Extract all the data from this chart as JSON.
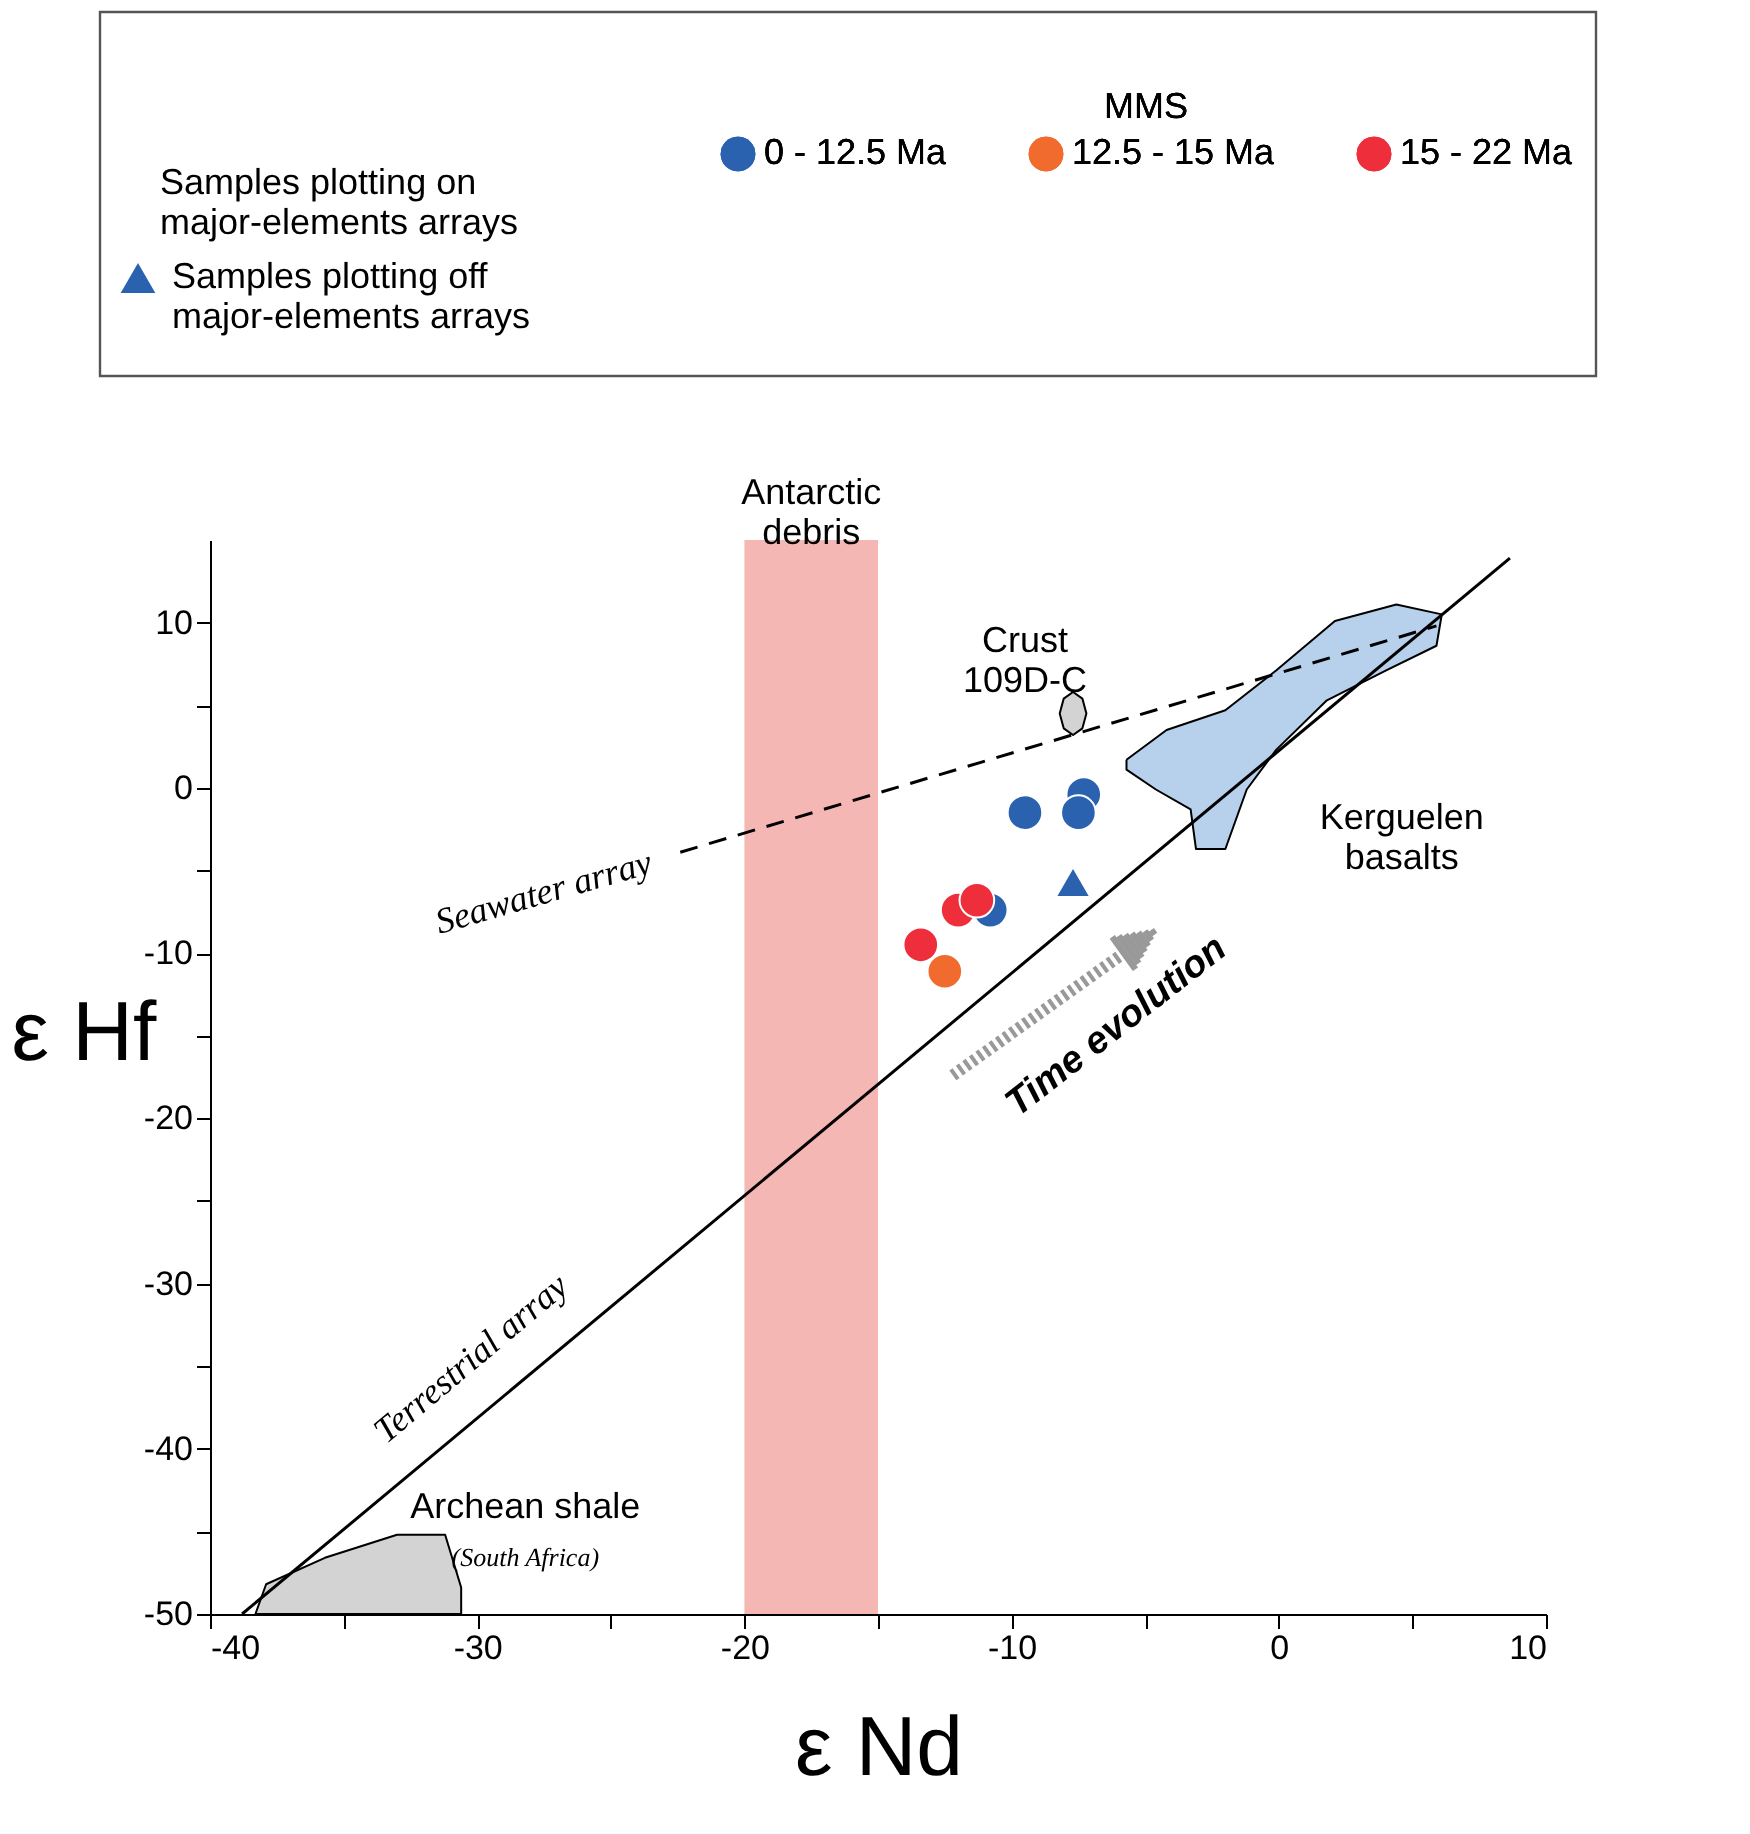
{
  "chart_data": {
    "type": "scatter",
    "xlabel": "ε Nd",
    "ylabel": "ε Hf",
    "legend_title": "MMS",
    "legend": "top",
    "grid": false,
    "xlim": [
      -40,
      10
    ],
    "xticks": [
      -40,
      {
        "value": -35,
        "label": null
      },
      -30,
      {
        "value": -25,
        "label": null
      },
      -20,
      {
        "value": -15,
        "label": null
      },
      -10,
      {
        "value": -5,
        "label": null
      },
      0,
      {
        "value": 5,
        "label": null
      },
      10
    ],
    "ylim": [
      -50,
      15
    ],
    "yticks": [
      -50,
      {
        "value": -45,
        "label": null
      },
      -40,
      {
        "value": -35,
        "label": null
      },
      -30,
      {
        "value": -25,
        "label": null
      },
      -20,
      {
        "value": -15,
        "label": null
      },
      -10,
      {
        "value": -5,
        "label": null
      },
      0,
      {
        "value": 5,
        "label": null
      },
      10
    ],
    "bands": [
      {
        "axis": "x",
        "from": -20,
        "to": -15,
        "label": "Antarctic\ndebris",
        "color": "#f5b7b3"
      }
    ],
    "series": [
      {
        "type": "area",
        "name": "Kerguelen\nbasalts",
        "color": "#b7d0eb",
        "x": [
          -5.7,
          -4.2,
          -2.0,
          -0.1,
          2.1,
          4.4,
          6.1,
          5.9,
          4.0,
          1.8,
          -0.1,
          -1.2,
          -2.0,
          -3.1,
          -3.3,
          -4.6,
          -5.7
        ],
        "values": [
          1.7,
          3.5,
          4.7,
          7.1,
          10.1,
          11.1,
          10.5,
          8.6,
          7.1,
          5.3,
          2.3,
          -0.1,
          -3.7,
          -3.7,
          -1.3,
          -0.1,
          1.1
        ]
      },
      {
        "type": "area",
        "name": "Archean shale",
        "color": "#d3d3d3",
        "x": [
          -38.3,
          -37.9,
          -35.7,
          -33.0,
          -31.2,
          -30.6,
          -30.6
        ],
        "values": [
          -50,
          -48.2,
          -46.6,
          -45.2,
          -45.2,
          -48.4,
          -50
        ]
      },
      {
        "type": "area",
        "name": "Crust\n109D-C",
        "color": "#d3d3d3",
        "x": [
          -7.7,
          -7.35,
          -7.2,
          -7.35,
          -7.7,
          -8.05,
          -8.2,
          -8.05
        ],
        "values": [
          5.8,
          5.4,
          4.5,
          3.6,
          3.2,
          3.6,
          4.5,
          5.4
        ]
      },
      {
        "type": "line",
        "name": "Terrestrial array",
        "color": "#000000",
        "line_style": "solid",
        "marker": "none",
        "x": [
          -38.8,
          8.65
        ],
        "values": [
          -50,
          13.9
        ]
      },
      {
        "type": "line",
        "name": "Seawater array",
        "color": "#000000",
        "line_style": "dashed",
        "marker": "none",
        "x": [
          -22.4,
          5.9
        ],
        "values": [
          -3.9,
          9.8
        ]
      },
      {
        "name": "0 - 12.5 Ma",
        "color": "#2a62b0",
        "marker": "circle",
        "x": [
          -9.5,
          -7.3,
          -7.5,
          -10.8
        ],
        "values": [
          -1.5,
          -0.4,
          -1.5,
          -7.4
        ]
      },
      {
        "name": "12.5 - 15 Ma",
        "color": "#f26b2e",
        "marker": "circle",
        "x": [
          -12.5
        ],
        "values": [
          -11.1
        ]
      },
      {
        "name": "15 - 22 Ma",
        "color": "#ee2e3b",
        "marker": "circle",
        "x": [
          -13.4,
          -12.0,
          -11.3
        ],
        "values": [
          -9.5,
          -7.4,
          -6.8
        ]
      },
      {
        "name": "Samples plotting off\nmajor-elements arrays",
        "color": "#2a62b0",
        "marker": "triangle",
        "x": [
          -7.7
        ],
        "values": [
          -5.7
        ]
      }
    ],
    "annotations": [
      "Samples plotting on\nmajor-elements arrays",
      "(South Africa)",
      "Time evolution"
    ]
  }
}
